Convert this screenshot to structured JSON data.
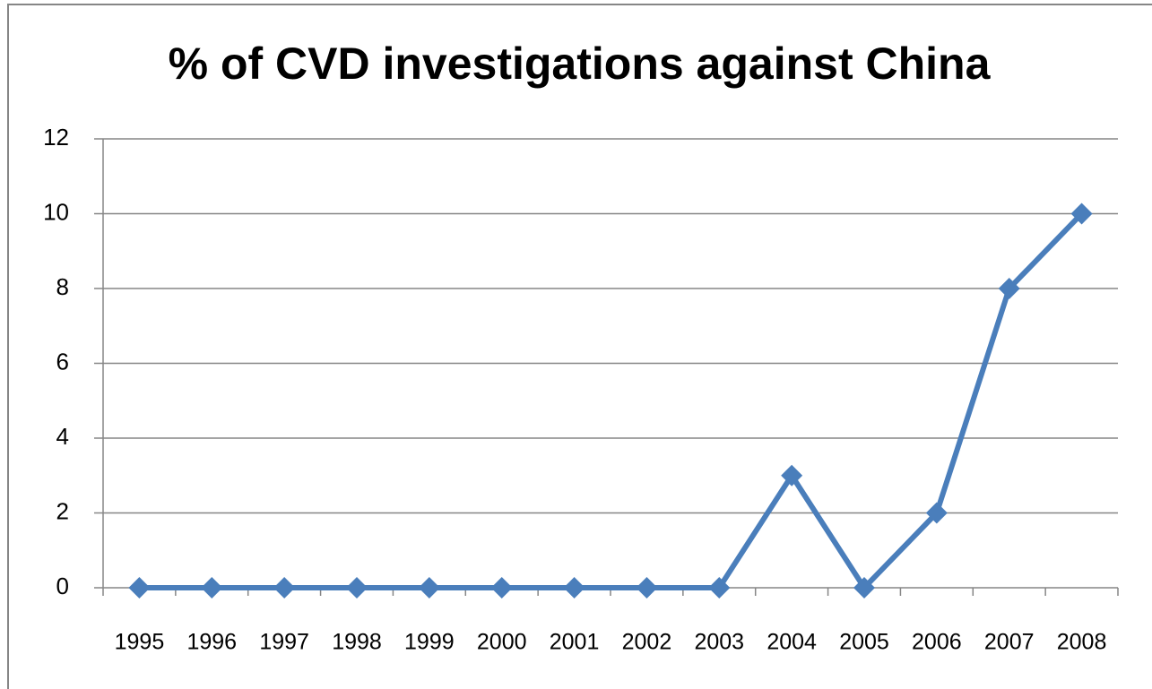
{
  "chart_data": {
    "type": "line",
    "title": "% of CVD investigations against China",
    "categories": [
      "1995",
      "1996",
      "1997",
      "1998",
      "1999",
      "2000",
      "2001",
      "2002",
      "2003",
      "2004",
      "2005",
      "2006",
      "2007",
      "2008"
    ],
    "values": [
      0,
      0,
      0,
      0,
      0,
      0,
      0,
      0,
      0,
      3,
      0,
      2,
      8,
      10
    ],
    "color": "#4a7ebb",
    "ylim": [
      0,
      12
    ],
    "yticks": [
      0,
      2,
      4,
      6,
      8,
      10,
      12
    ],
    "grid": true
  }
}
